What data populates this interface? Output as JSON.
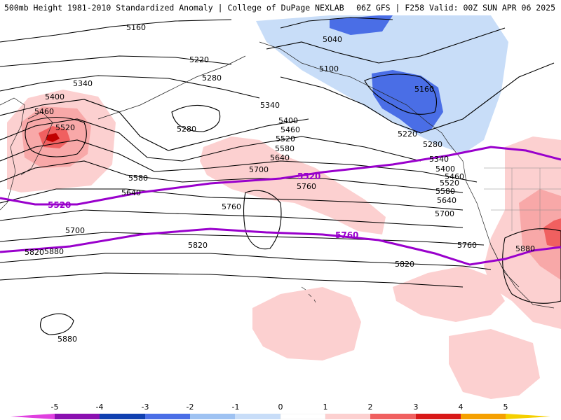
{
  "header": {
    "title_left": "500mb Height 1981-2010 Standardized Anomaly | College of DuPage NEXLAB",
    "title_right": "06Z GFS | F258 Valid: 00Z SUN APR 06 2025"
  },
  "contours": {
    "black_labels": [
      "5160",
      "5220",
      "5280",
      "5340",
      "5400",
      "5460",
      "5520",
      "5580",
      "5640",
      "5700",
      "5760",
      "5820",
      "5880",
      "5040",
      "5100",
      "5160",
      "5220",
      "5280",
      "5340",
      "5400",
      "5460",
      "5520",
      "5580",
      "5640",
      "5700",
      "5760",
      "5820",
      "5880",
      "5280",
      "5340",
      "5400",
      "5460",
      "5520",
      "5580",
      "5640",
      "5700",
      "5760",
      "5820",
      "5880"
    ],
    "purple_labels": [
      "5520",
      "5520",
      "5760"
    ]
  },
  "legend": {
    "ticks": [
      "-5",
      "-4",
      "-3",
      "-2",
      "-1",
      "0",
      "1",
      "2",
      "3",
      "4",
      "5"
    ],
    "colors": {
      "neg5": "#e040e0",
      "neg4": "#8a10b0",
      "neg3": "#1040b0",
      "neg2": "#4a6ee6",
      "neg1": "#9ec2f2",
      "neg05": "#c8ddf8",
      "pos05": "#fcd0d0",
      "pos1": "#f8a8a8",
      "pos2": "#f06060",
      "pos3": "#d81818",
      "pos4": "#a80000",
      "pos5": "#f5a000",
      "pos6": "#f5d000"
    }
  }
}
